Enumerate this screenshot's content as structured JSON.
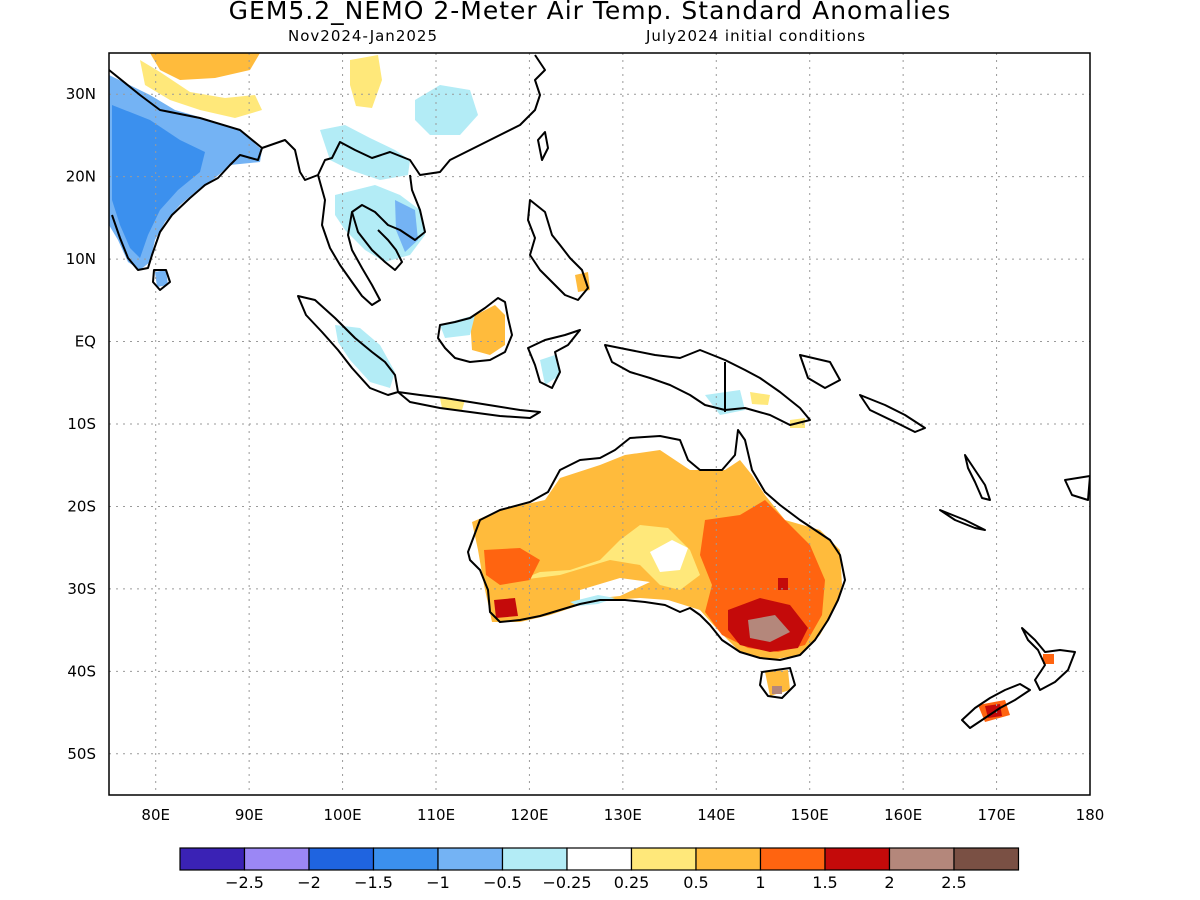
{
  "header": {
    "title": "GEM5.2_NEMO 2-Meter Air Temp. Standard Anomalies",
    "period": "Nov2024-Jan2025",
    "initial_conditions": "July2024 initial conditions"
  },
  "map": {
    "lon_range": [
      75,
      180
    ],
    "lat_range": [
      -55,
      35
    ],
    "lon_labels": [
      "80E",
      "90E",
      "100E",
      "110E",
      "120E",
      "130E",
      "140E",
      "150E",
      "160E",
      "170E",
      "180"
    ],
    "lat_labels": [
      "30N",
      "20N",
      "10N",
      "EQ",
      "10S",
      "20S",
      "30S",
      "40S",
      "50S"
    ],
    "grid": true
  },
  "colorbar": {
    "colors": [
      "#3a22b5",
      "#9b87f5",
      "#1f64e0",
      "#3b90ee",
      "#74b3f4",
      "#b3ecf6",
      "#ffffff",
      "#ffe87a",
      "#ffbb3c",
      "#ff6410",
      "#c40a0a",
      "#b4877b",
      "#7a5044"
    ],
    "labels": [
      "-2.5",
      "-2",
      "-1.5",
      "-1",
      "-0.5",
      "-0.25",
      "0.25",
      "0.5",
      "1",
      "1.5",
      "2",
      "2.5"
    ]
  }
}
